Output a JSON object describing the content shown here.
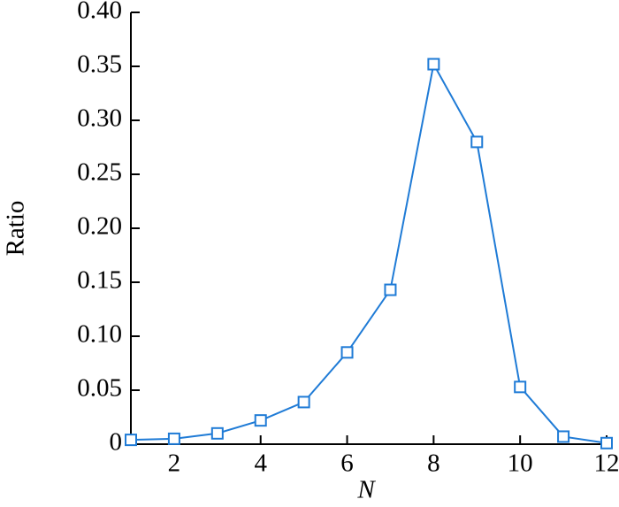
{
  "chart_data": {
    "type": "line",
    "x_label": "N",
    "y_label": "Ratio",
    "x": [
      1,
      2,
      3,
      4,
      5,
      6,
      7,
      8,
      9,
      10,
      11,
      12
    ],
    "values": [
      0.004,
      0.005,
      0.01,
      0.022,
      0.039,
      0.085,
      0.143,
      0.352,
      0.28,
      0.053,
      0.007,
      0.001
    ],
    "color": "#1f7bd6",
    "marker": "square",
    "xlim": [
      1,
      12
    ],
    "xticks": [
      2,
      4,
      6,
      8,
      10,
      12
    ],
    "ylim": [
      0,
      0.4
    ],
    "yticks": [
      0,
      0.05,
      {
        "value": 0.1,
        "label": "0.10"
      },
      0.15,
      {
        "value": 0.2,
        "label": "0.20"
      },
      0.25,
      {
        "value": 0.3,
        "label": "0.30"
      },
      0.35,
      {
        "value": 0.4,
        "label": "0.40"
      }
    ],
    "grid": false
  }
}
